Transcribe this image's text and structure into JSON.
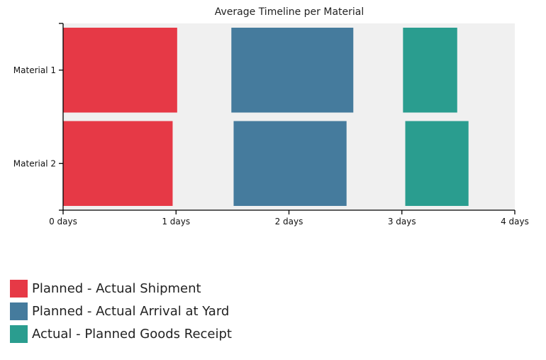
{
  "chart_data": {
    "type": "bar",
    "orientation": "horizontal-range",
    "title": "Average Timeline per Material",
    "xlabel": "",
    "ylabel": "",
    "xlim": [
      0,
      4
    ],
    "x_ticks": [
      "0 days",
      "1 days",
      "2 days",
      "3 days",
      "4 days"
    ],
    "categories": [
      "Material 1",
      "Material 2"
    ],
    "grid": false,
    "legend_position": "bottom-left",
    "plot_background": "#f0f0f0",
    "series": [
      {
        "name": "Planned - Actual Shipment",
        "color": "#e63946",
        "ranges": [
          [
            0,
            1.01
          ],
          [
            0,
            0.97
          ]
        ]
      },
      {
        "name": "Planned - Actual Arrival at Yard",
        "color": "#457b9d",
        "ranges": [
          [
            1.49,
            2.57
          ],
          [
            1.51,
            2.51
          ]
        ]
      },
      {
        "name": "Actual - Planned Goods Receipt",
        "color": "#2a9d8f",
        "ranges": [
          [
            3.01,
            3.49
          ],
          [
            3.03,
            3.59
          ]
        ]
      }
    ]
  }
}
